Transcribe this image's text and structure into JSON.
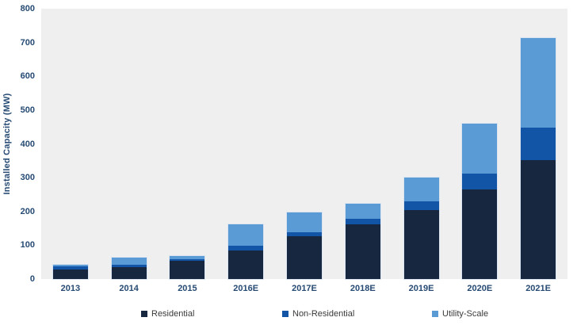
{
  "chart_data": {
    "type": "bar",
    "stacked": true,
    "title": "",
    "xlabel": "",
    "ylabel": "Installed Capacity (MW)",
    "ylim": [
      0,
      800
    ],
    "yticks": [
      0,
      100,
      200,
      300,
      400,
      500,
      600,
      700,
      800
    ],
    "grid": false,
    "legend_position": "bottom",
    "plot_background": "#efefef",
    "axis_text_color": "#264a73",
    "categories": [
      "2013",
      "2014",
      "2015",
      "2016E",
      "2017E",
      "2018E",
      "2019E",
      "2020E",
      "2021E"
    ],
    "series": [
      {
        "name": "Residential",
        "color": "#17273f",
        "values": [
          28,
          35,
          54,
          85,
          127,
          162,
          205,
          266,
          353
        ]
      },
      {
        "name": "Non-Residential",
        "color": "#1254a5",
        "values": [
          9,
          7,
          5,
          14,
          12,
          16,
          24,
          47,
          96
        ]
      },
      {
        "name": "Utility-Scale",
        "color": "#5b9bd5",
        "values": [
          5,
          21,
          9,
          63,
          59,
          45,
          71,
          146,
          264
        ]
      }
    ],
    "totals": [
      42,
      63,
      68,
      162,
      198,
      223,
      300,
      459,
      713
    ]
  }
}
